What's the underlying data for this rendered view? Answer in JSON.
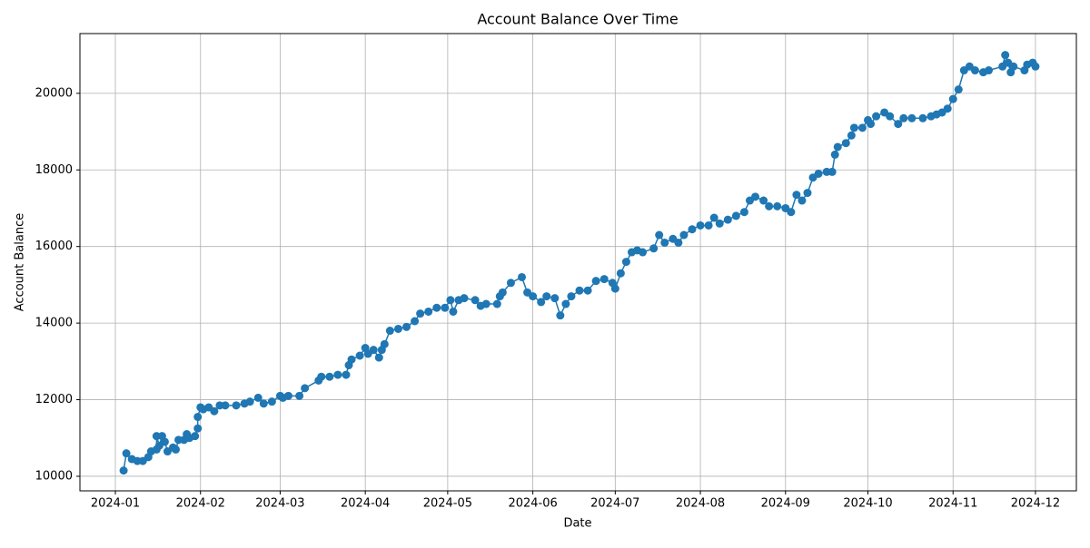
{
  "chart_data": {
    "type": "line",
    "title": "Account Balance Over Time",
    "x_label": "Date",
    "y_label": "Account Balance",
    "x": [
      3,
      4,
      6,
      8,
      10,
      12,
      13,
      15,
      15,
      16,
      17,
      18,
      19,
      21,
      22,
      23,
      25,
      26,
      27,
      29,
      30,
      30,
      31,
      32,
      34,
      36,
      38,
      40,
      44,
      47,
      49,
      52,
      54,
      57,
      60,
      61,
      63,
      67,
      69,
      74,
      75,
      78,
      81,
      84,
      85,
      86,
      89,
      91,
      92,
      94,
      96,
      97,
      98,
      100,
      103,
      106,
      109,
      111,
      114,
      117,
      120,
      122,
      123,
      125,
      127,
      131,
      133,
      135,
      139,
      140,
      141,
      144,
      148,
      150,
      152,
      155,
      157,
      160,
      162,
      164,
      166,
      169,
      172,
      175,
      178,
      181,
      182,
      184,
      186,
      188,
      190,
      192,
      196,
      198,
      200,
      203,
      205,
      207,
      210,
      213,
      216,
      218,
      220,
      223,
      226,
      229,
      231,
      233,
      236,
      238,
      241,
      244,
      246,
      248,
      250,
      252,
      254,
      256,
      259,
      261,
      262,
      263,
      266,
      268,
      269,
      272,
      274,
      275,
      277,
      280,
      282,
      285,
      287,
      290,
      294,
      297,
      299,
      301,
      303,
      305,
      307,
      309,
      311,
      313,
      316,
      318,
      323,
      324,
      325,
      326,
      327,
      331,
      332,
      334,
      335
    ],
    "values": [
      10150,
      10600,
      10450,
      10400,
      10400,
      10500,
      10650,
      10700,
      11050,
      10800,
      11050,
      10900,
      10650,
      10750,
      10700,
      10950,
      10950,
      11100,
      11000,
      11050,
      11250,
      11550,
      11800,
      11750,
      11800,
      11700,
      11850,
      11850,
      11850,
      11900,
      11950,
      12050,
      11900,
      11950,
      12100,
      12050,
      12100,
      12100,
      12300,
      12500,
      12600,
      12600,
      12650,
      12650,
      12900,
      13050,
      13150,
      13350,
      13200,
      13300,
      13100,
      13300,
      13450,
      13800,
      13850,
      13900,
      14050,
      14250,
      14300,
      14400,
      14400,
      14600,
      14300,
      14600,
      14650,
      14600,
      14450,
      14500,
      14500,
      14700,
      14800,
      15050,
      15200,
      14800,
      14700,
      14550,
      14700,
      14650,
      14200,
      14500,
      14700,
      14850,
      14850,
      15100,
      15150,
      15050,
      14900,
      15300,
      15600,
      15850,
      15900,
      15850,
      15950,
      16300,
      16100,
      16200,
      16100,
      16300,
      16450,
      16550,
      16550,
      16750,
      16600,
      16700,
      16800,
      16900,
      17200,
      17300,
      17200,
      17050,
      17050,
      17000,
      16900,
      17350,
      17200,
      17400,
      17800,
      17900,
      17950,
      17950,
      18400,
      18600,
      18700,
      18900,
      19100,
      19100,
      19300,
      19200,
      19400,
      19500,
      19400,
      19200,
      19350,
      19350,
      19350,
      19400,
      19450,
      19500,
      19600,
      19850,
      20100,
      20600,
      20700,
      20600,
      20550,
      20600,
      20700,
      21000,
      20800,
      20550,
      20700,
      20600,
      20750,
      20800,
      20700
    ],
    "color": "#1f77b4",
    "xlim": [
      -12.9,
      349.9
    ],
    "xticks": [
      {
        "value": 0,
        "label": "2024-01"
      },
      {
        "value": 31,
        "label": "2024-02"
      },
      {
        "value": 60,
        "label": "2024-03"
      },
      {
        "value": 91,
        "label": "2024-04"
      },
      {
        "value": 121,
        "label": "2024-05"
      },
      {
        "value": 152,
        "label": "2024-06"
      },
      {
        "value": 182,
        "label": "2024-07"
      },
      {
        "value": 213,
        "label": "2024-08"
      },
      {
        "value": 244,
        "label": "2024-09"
      },
      {
        "value": 274,
        "label": "2024-10"
      },
      {
        "value": 305,
        "label": "2024-11"
      },
      {
        "value": 335,
        "label": "2024-12"
      }
    ],
    "ylim": [
      9620,
      21560
    ],
    "yticks": [
      10000,
      12000,
      14000,
      16000,
      18000,
      20000
    ],
    "grid": true
  }
}
